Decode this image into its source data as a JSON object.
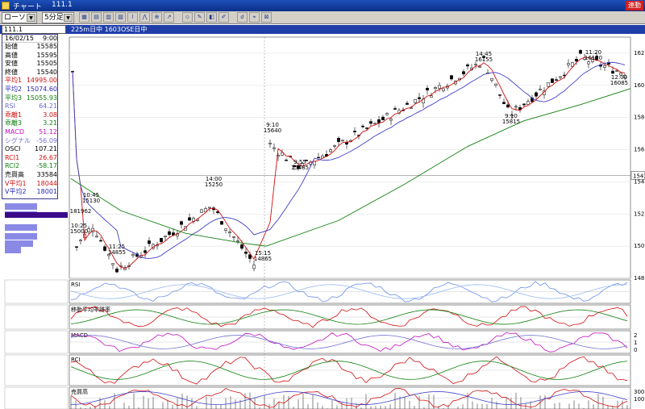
{
  "window": {
    "app_title": "チャート",
    "title": "111.1",
    "badge": "連動"
  },
  "toolbar": {
    "chart_type": "ローソク",
    "interval": "5分足",
    "buttons": [
      {
        "icon": "table-icon"
      },
      {
        "icon": "grid-icon"
      },
      {
        "icon": "list-icon"
      },
      {
        "icon": "sheet-icon"
      },
      {
        "icon": "line-chart-icon"
      },
      {
        "icon": "zigzag-icon"
      },
      {
        "icon": "zoom-icon"
      },
      {
        "icon": "trend-icon"
      },
      {
        "icon": "cursor-icon"
      },
      {
        "icon": "pencil-icon"
      },
      {
        "icon": "eraser-icon"
      },
      {
        "icon": "edit-icon"
      },
      {
        "icon": "search-icon"
      },
      {
        "icon": "pin-icon"
      },
      {
        "icon": "mark-icon"
      }
    ]
  },
  "infobar": {
    "code": "111.1",
    "series": "225m日中 1603",
    "market": "OSE日中"
  },
  "panel": {
    "date": "16/02/15",
    "time": "9:00",
    "rows": [
      {
        "label": "始値",
        "value": "15585",
        "color": "#000000"
      },
      {
        "label": "高値",
        "value": "15595",
        "color": "#000000"
      },
      {
        "label": "安値",
        "value": "15505",
        "color": "#000000"
      },
      {
        "label": "終値",
        "value": "15540",
        "color": "#000000"
      },
      {
        "label": "平均1",
        "value": "14995.00",
        "color": "#d01010"
      },
      {
        "label": "平均2",
        "value": "15074.60",
        "color": "#2a2ab8"
      },
      {
        "label": "平均3",
        "value": "15055.93",
        "color": "#108010"
      },
      {
        "label": "RSI",
        "value": "64.21",
        "color": "#6a6ad8"
      },
      {
        "label": "乖離1",
        "value": "3.08",
        "color": "#d01010"
      },
      {
        "label": "乖離3",
        "value": "3.21",
        "color": "#108010"
      },
      {
        "label": "MACD",
        "value": "51.12",
        "color": "#c010c0"
      },
      {
        "label": "シグナル",
        "value": "-56.09",
        "color": "#7070d0"
      },
      {
        "label": "OSCI",
        "value": "107.21",
        "color": "#000000"
      },
      {
        "label": "RCI1",
        "value": "26.67",
        "color": "#d01010"
      },
      {
        "label": "RCI2",
        "value": "-58.17",
        "color": "#108010"
      },
      {
        "label": "売買高",
        "value": "33584",
        "color": "#000000"
      },
      {
        "label": "V平均1",
        "value": "18044",
        "color": "#d01010"
      },
      {
        "label": "V平均2",
        "value": "18001",
        "color": "#2a2ab8"
      }
    ]
  },
  "colors": {
    "ma1": "#d01010",
    "ma2": "#4040c8",
    "ma3": "#108010",
    "rsi": "#6a90e8",
    "volume": "#5050d0"
  },
  "chart_data": {
    "type": "line",
    "ylim": [
      14800,
      16300
    ],
    "y_ticks": [
      "162",
      "160",
      "158",
      "156",
      "154",
      "152",
      "150",
      "148"
    ],
    "price_marker": "1543",
    "x": [
      "16/02/12 10:25",
      "16/02/12 10:45",
      "16/02/12 11:25",
      "16/02/12 14:00",
      "16/02/12 15:15",
      "16/02/15 9:10",
      "16/02/15 9:55",
      "16/02/15 14:45",
      "16/02/15 9:10",
      "16/02/15 11:20",
      "16/02/15 12:00"
    ],
    "series": [
      {
        "values": [
          15000,
          15130,
          14855,
          15250,
          14865,
          15640,
          15485,
          16155,
          15815,
          16170,
          16085
        ]
      }
    ],
    "annotations": [
      {
        "text": "10:25",
        "value": "15000"
      },
      {
        "text": "10:45",
        "value": "15130"
      },
      {
        "text": "11:25",
        "value": "14855"
      },
      {
        "text": "14:00",
        "value": "15250"
      },
      {
        "text": "15:15",
        "value": "14865"
      },
      {
        "text": "9:10",
        "value": "15640"
      },
      {
        "text": "9:55",
        "value": "15485"
      },
      {
        "text": "14:45",
        "value": "16155"
      },
      {
        "text": "9:10",
        "value": "15815"
      },
      {
        "text": "11:20",
        "value": "16170"
      },
      {
        "text": "12:00",
        "value": "16085"
      },
      {
        "text": "181962",
        "value": ""
      }
    ],
    "subpanels": [
      {
        "label": "RSI",
        "ticks": []
      },
      {
        "label": "移動平均乖離率",
        "ticks": []
      },
      {
        "label": "MACD",
        "ticks": [
          "2",
          "1",
          "0"
        ]
      },
      {
        "label": "RCI",
        "ticks": []
      },
      {
        "label": "売買高",
        "ticks": [
          "300",
          "100"
        ]
      }
    ]
  }
}
